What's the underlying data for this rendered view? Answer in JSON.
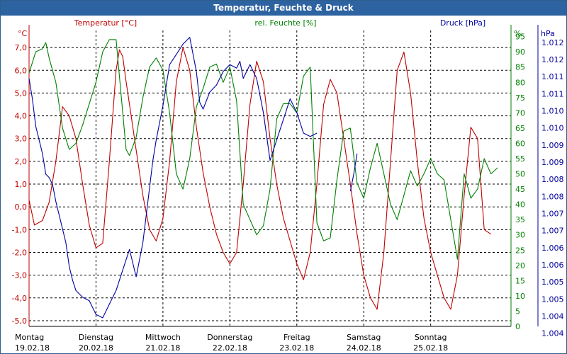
{
  "window": {
    "title": "Temperatur, Feuchte & Druck"
  },
  "colors": {
    "temperature": "#c00000",
    "humidity": "#008000",
    "pressure": "#0000a0",
    "grid": "#000000",
    "title_bg": "#2d63a0"
  },
  "chart_data": {
    "type": "line",
    "title": "Temperatur, Feuchte & Druck",
    "x_range": [
      0,
      7.2
    ],
    "day_labels": [
      {
        "x": 0,
        "day": "Montag",
        "date": "19.02.18"
      },
      {
        "x": 1,
        "day": "Dienstag",
        "date": "20.02.18"
      },
      {
        "x": 2,
        "day": "Mittwoch",
        "date": "21.02.18"
      },
      {
        "x": 3,
        "day": "Donnerstag",
        "date": "22.02.18"
      },
      {
        "x": 4,
        "day": "Freitag",
        "date": "23.02.18"
      },
      {
        "x": 5,
        "day": "Samstag",
        "date": "24.02.18"
      },
      {
        "x": 6,
        "day": "Sonntag",
        "date": "25.02.18"
      }
    ],
    "axes": {
      "temperature": {
        "label": "Temperatur [°C]",
        "unit": "°C",
        "range": [
          -5.25,
          7.75
        ],
        "ticks": [
          "7,0",
          "6,0",
          "5,0",
          "4,0",
          "3,0",
          "2,0",
          "1,0",
          "0,0",
          "-1,0",
          "-2,0",
          "-3,0",
          "-4,0",
          "-5,0"
        ],
        "tick_values": [
          7,
          6,
          5,
          4,
          3,
          2,
          1,
          0,
          -1,
          -2,
          -3,
          -4,
          -5
        ]
      },
      "humidity": {
        "label": "rel. Feuchte [%]",
        "unit": "%",
        "range": [
          0,
          97
        ],
        "ticks": [
          "95",
          "90",
          "85",
          "80",
          "75",
          "70",
          "65",
          "60",
          "55",
          "50",
          "45",
          "40",
          "35",
          "30",
          "25",
          "20",
          "15",
          "10",
          "5",
          "0"
        ],
        "tick_values": [
          95,
          90,
          85,
          80,
          75,
          70,
          65,
          60,
          55,
          50,
          45,
          40,
          35,
          30,
          25,
          20,
          15,
          10,
          5,
          0
        ]
      },
      "pressure": {
        "label": "Druck [hPa]",
        "unit": "hPa",
        "range": [
          1003.95,
          1012.6
        ],
        "ticks": [
          "1.012",
          "1.012",
          "1.011",
          "1.011",
          "1.010",
          "1.010",
          "1.009",
          "1.009",
          "1.008",
          "1.008",
          "1.007",
          "1.007",
          "1.006",
          "1.006",
          "1.005",
          "1.005",
          "1.004",
          "1.004"
        ],
        "tick_values": [
          1012.25,
          1011.75,
          1011.25,
          1010.75,
          1010.25,
          1009.75,
          1009.25,
          1008.75,
          1008.25,
          1007.75,
          1007.25,
          1006.75,
          1006.25,
          1005.75,
          1005.25,
          1004.75,
          1004.25,
          1003.75
        ]
      }
    },
    "grid": true,
    "series": [
      {
        "name": "Temperatur [°C]",
        "x": [
          0.0,
          0.08,
          0.2,
          0.3,
          0.4,
          0.5,
          0.6,
          0.7,
          0.8,
          0.9,
          1.0,
          1.1,
          1.2,
          1.3,
          1.35,
          1.4,
          1.45,
          1.5,
          1.6,
          1.7,
          1.8,
          1.9,
          2.0,
          2.1,
          2.2,
          2.3,
          2.4,
          2.5,
          2.6,
          2.7,
          2.8,
          2.9,
          3.0,
          3.1,
          3.2,
          3.3,
          3.4,
          3.5,
          3.6,
          3.7,
          3.8,
          3.9,
          4.0,
          4.1,
          4.2,
          4.3,
          4.4,
          4.5,
          4.6,
          4.7,
          4.8,
          4.9,
          5.0,
          5.1,
          5.2,
          5.3,
          5.4,
          5.5,
          5.6,
          5.7,
          5.8,
          5.9,
          6.0,
          6.1,
          6.2,
          6.3,
          6.4,
          6.5,
          6.6,
          6.7,
          6.8,
          6.9
        ],
        "values": [
          0.3,
          -0.8,
          -0.6,
          0.2,
          2.0,
          4.4,
          4.0,
          3.0,
          1.0,
          -0.8,
          -1.8,
          -1.6,
          2.0,
          6.0,
          6.9,
          6.6,
          5.5,
          4.5,
          2.5,
          0.5,
          -1.0,
          -1.5,
          -0.5,
          2.0,
          5.5,
          7.0,
          6.0,
          3.5,
          1.5,
          0.0,
          -1.2,
          -2.0,
          -2.5,
          -2.0,
          1.0,
          4.5,
          6.4,
          5.5,
          3.0,
          1.0,
          -0.5,
          -1.5,
          -2.5,
          -3.2,
          -2.0,
          1.0,
          4.5,
          5.6,
          5.0,
          3.0,
          1.0,
          -1.2,
          -3.0,
          -4.0,
          -4.5,
          -2.0,
          2.0,
          6.0,
          6.8,
          5.0,
          2.0,
          -0.5,
          -2.0,
          -3.0,
          -4.0,
          -4.5,
          -3.0,
          0.5,
          3.5,
          3.0,
          -1.0,
          -1.2
        ]
      },
      {
        "name": "rel. Feuchte [%]",
        "x": [
          0.0,
          0.1,
          0.2,
          0.25,
          0.3,
          0.4,
          0.5,
          0.6,
          0.7,
          0.8,
          0.9,
          1.0,
          1.1,
          1.2,
          1.3,
          1.4,
          1.45,
          1.5,
          1.6,
          1.7,
          1.8,
          1.9,
          2.0,
          2.1,
          2.2,
          2.3,
          2.4,
          2.5,
          2.6,
          2.7,
          2.8,
          2.9,
          3.0,
          3.1,
          3.2,
          3.3,
          3.4,
          3.5,
          3.6,
          3.7,
          3.8,
          3.9,
          4.0,
          4.1,
          4.2,
          4.3,
          4.4,
          4.5,
          4.6,
          4.7,
          4.8,
          4.9,
          5.0,
          5.1,
          5.2,
          5.3,
          5.4,
          5.5,
          5.6,
          5.7,
          5.8,
          5.9,
          6.0,
          6.1,
          6.2,
          6.3,
          6.4,
          6.5,
          6.6,
          6.7,
          6.8,
          6.9,
          7.0
        ],
        "values": [
          83,
          90,
          91,
          93,
          88,
          80,
          65,
          58,
          60,
          66,
          73,
          80,
          90,
          94,
          94,
          70,
          58,
          56,
          62,
          75,
          85,
          88,
          84,
          70,
          50,
          45,
          55,
          72,
          78,
          85,
          86,
          80,
          85,
          74,
          40,
          35,
          30,
          33,
          45,
          68,
          73,
          73,
          70,
          82,
          85,
          34,
          28,
          29,
          48,
          64,
          65,
          47,
          42,
          52,
          60,
          50,
          40,
          35,
          43,
          51,
          46,
          50,
          55,
          50,
          48,
          35,
          22,
          50,
          42,
          45,
          55,
          50,
          52
        ]
      },
      {
        "name": "Druck [hPa]",
        "segments": [
          {
            "x": [
              0.0,
              0.05,
              0.1,
              0.15,
              0.2,
              0.25,
              0.3,
              0.35,
              0.4,
              0.45,
              0.5,
              0.55,
              0.6,
              0.65,
              0.7,
              0.8,
              0.9,
              1.0,
              1.1,
              1.15,
              1.2,
              1.3,
              1.4,
              1.5,
              1.6,
              1.7,
              1.8,
              1.85,
              1.9,
              2.0,
              2.1,
              2.2,
              2.3,
              2.4,
              2.5,
              2.55,
              2.6,
              2.7,
              2.8,
              2.9,
              3.0,
              3.1,
              3.15,
              3.2,
              3.3,
              3.4,
              3.5,
              3.6,
              3.7,
              3.8,
              3.9,
              4.0,
              4.1,
              4.2,
              4.3
            ],
            "values": [
              1011.2,
              1010.6,
              1009.8,
              1009.4,
              1009.0,
              1008.4,
              1008.3,
              1008.1,
              1007.6,
              1007.2,
              1006.8,
              1006.4,
              1005.7,
              1005.3,
              1005.0,
              1004.8,
              1004.7,
              1004.3,
              1004.2,
              1004.4,
              1004.6,
              1005.0,
              1005.6,
              1006.2,
              1005.4,
              1006.4,
              1008.0,
              1008.8,
              1009.4,
              1010.4,
              1011.6,
              1011.9,
              1012.2,
              1012.4,
              1011.4,
              1010.5,
              1010.3,
              1010.8,
              1011.0,
              1011.4,
              1011.6,
              1011.5,
              1011.7,
              1011.2,
              1011.6,
              1011.2,
              1010.2,
              1008.8,
              1009.4,
              1010.0,
              1010.6,
              1010.2,
              1009.6,
              1009.5,
              1009.6
            ]
          },
          {
            "x": [
              4.8,
              4.85,
              4.9
            ],
            "values": [
              1007.9,
              1008.4,
              1009.0
            ]
          }
        ]
      }
    ]
  }
}
